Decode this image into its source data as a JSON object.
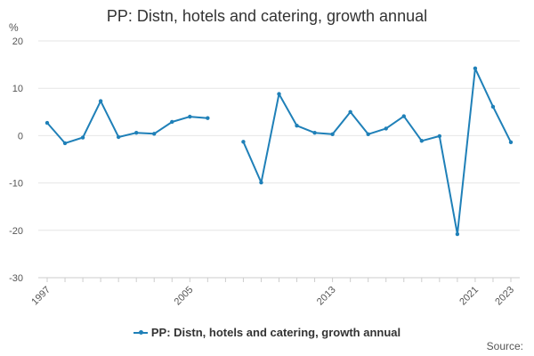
{
  "colors": {
    "series": "#1f80b8",
    "grid": "#e6e6e6",
    "axis": "#cccccc"
  },
  "chart_data": {
    "type": "line",
    "title": "PP: Distn, hotels and catering, growth annual",
    "ylabel": "%",
    "xlabel": "",
    "ylim": [
      -30,
      20
    ],
    "xlim": [
      1997,
      2023
    ],
    "yticks": [
      20,
      10,
      0,
      -10,
      -20,
      -30
    ],
    "xtick_labels": [
      "1997",
      "2005",
      "2013",
      "2021",
      "2023"
    ],
    "grid": true,
    "legend_position": "bottom-center",
    "series": [
      {
        "name": "PP: Distn, hotels and catering, growth annual",
        "x": [
          1997,
          1998,
          1999,
          2000,
          2001,
          2002,
          2003,
          2004,
          2005,
          2006,
          2007,
          2008,
          2009,
          2010,
          2011,
          2012,
          2013,
          2014,
          2015,
          2016,
          2017,
          2018,
          2019,
          2020,
          2021,
          2022,
          2023
        ],
        "values": [
          2.7,
          -1.6,
          -0.4,
          7.3,
          -0.3,
          0.6,
          0.4,
          2.9,
          4.0,
          3.7,
          null,
          -1.3,
          -9.9,
          8.8,
          2.1,
          0.6,
          0.3,
          5.0,
          0.3,
          1.5,
          4.1,
          -1.1,
          -0.1,
          -20.8,
          14.2,
          6.1,
          -1.4
        ]
      }
    ]
  },
  "legend": {
    "label": "PP: Distn, hotels and catering, growth annual"
  },
  "source_label": "Source:"
}
